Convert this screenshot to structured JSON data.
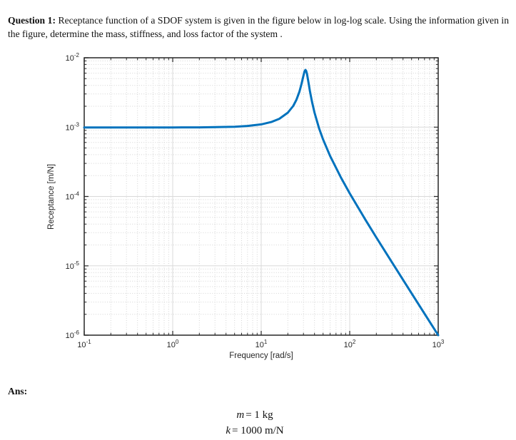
{
  "page": {
    "background": "#ffffff"
  },
  "question": {
    "label": "Question 1:",
    "text": "Receptance function of a SDOF system is given in the figure below in log-log scale. Using the information given in the figure, determine the mass, stiffness, and loss factor of the system ."
  },
  "answer": {
    "label": "Ans:",
    "equations": [
      {
        "lhs": "m",
        "rhs": "= 1 kg"
      },
      {
        "lhs": "k",
        "rhs": "= 1000 m/N"
      }
    ]
  },
  "chart_data": {
    "type": "line",
    "title": "",
    "xlabel": "Frequency [rad/s]",
    "ylabel": "Receptance [m/N]",
    "xscale": "log",
    "yscale": "log",
    "xlim": [
      0.1,
      1000
    ],
    "ylim": [
      1e-06,
      0.01
    ],
    "x_tick_exponents": [
      -1,
      0,
      1,
      2,
      3
    ],
    "y_tick_exponents": [
      -2,
      -3,
      -4,
      -5,
      -6
    ],
    "grid": {
      "major": "solid",
      "minor": "dotted",
      "box": "on",
      "tick_dir": "in"
    },
    "colors": {
      "line": "#0072BD",
      "axes": "#262626",
      "major_grid": "#d9d9d9",
      "minor_grid": "#d4d4d4"
    },
    "series": [
      {
        "name": "receptance",
        "x": [
          0.1,
          0.2,
          0.5,
          1,
          2,
          3,
          5,
          7,
          10,
          13,
          16,
          20,
          23,
          25,
          27,
          28.5,
          29.5,
          30.5,
          31,
          31.6,
          32.2,
          33,
          34,
          35.5,
          37.5,
          40,
          45,
          50,
          60,
          80,
          100,
          150,
          200,
          300,
          500,
          700,
          1000
        ],
        "y": [
          0.0009889,
          0.0009889,
          0.0009891,
          0.0009899,
          0.0009928,
          0.0009977,
          0.001014,
          0.001039,
          0.001096,
          0.001184,
          0.001318,
          0.001617,
          0.002023,
          0.002476,
          0.003229,
          0.004161,
          0.005042,
          0.006045,
          0.006452,
          0.006666,
          0.006474,
          0.005734,
          0.004621,
          0.003329,
          0.002309,
          0.001617,
          0.0009653,
          0.0006634,
          0.000384,
          0.0001851,
          0.0001111,
          4.651e-05,
          2.564e-05,
          1.124e-05,
          4.016e-06,
          2.045e-06,
          1.001e-06
        ]
      }
    ],
    "key_readings": {
      "static_level_mN": 0.001,
      "peak_frequency_rads": 31.6,
      "peak_value_mN": 0.00667,
      "value_at_1000_rads_mN": 1e-06
    }
  }
}
